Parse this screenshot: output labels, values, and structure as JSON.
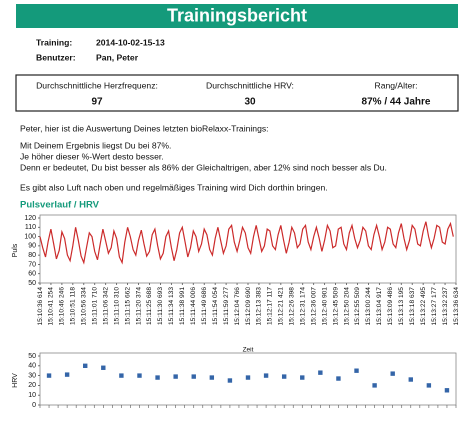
{
  "header": {
    "title": "Trainingsbericht"
  },
  "info": {
    "training_label": "Training:",
    "training": "2014-10-02-15-13",
    "user_label": "Benutzer:",
    "user": "Pan, Peter"
  },
  "stats": [
    {
      "label": "Durchschnittliche Herzfrequenz:",
      "value": "97"
    },
    {
      "label": "Durchschnittliche HRV:",
      "value": "30"
    },
    {
      "label": "Rang/Alter:",
      "value": "87% / 44 Jahre"
    }
  ],
  "paragraphs": [
    "Peter, hier ist die Auswertung Deines letzten bioRelaxx-Trainings:",
    "Mit Deinem Ergebnis liegst Du bei 87%.",
    "Je höher dieser %-Wert desto besser.",
    "Denn er bedeutet, Du bist besser als 86% der Gleichaltrigen, aber 12% sind noch besser als Du.",
    "Es gibt also Luft nach oben und regelmäßiges Training wird Dich dorthin bringen."
  ],
  "section_title": "Pulsverlauf / HRV",
  "chart_data": [
    {
      "type": "line",
      "y_label": "Puls",
      "x_label": "Zeit",
      "color": "#cc2b2b",
      "grid": false,
      "ylim": [
        50,
        120
      ],
      "yticks": [
        50,
        60,
        70,
        80,
        90,
        100,
        110,
        120
      ],
      "xlim": [
        0,
        152
      ],
      "xticks": [
        {
          "value": 0,
          "label": "15:10:36 614"
        },
        {
          "value": 4,
          "label": "15:10:41 254"
        },
        {
          "value": 8,
          "label": "15:10:46 246"
        },
        {
          "value": 12,
          "label": "15:10:51 118"
        },
        {
          "value": 16,
          "label": "15:10:56 334"
        },
        {
          "value": 20,
          "label": "15:11:01 710"
        },
        {
          "value": 24,
          "label": "15:11:06 342"
        },
        {
          "value": 28,
          "label": "15:11:10 310"
        },
        {
          "value": 32,
          "label": "15:11:15 662"
        },
        {
          "value": 36,
          "label": "15:11:20 374"
        },
        {
          "value": 40,
          "label": "15:11:25 688"
        },
        {
          "value": 44,
          "label": "15:11:30 693"
        },
        {
          "value": 48,
          "label": "15:11:34 133"
        },
        {
          "value": 52,
          "label": "15:11:38 991"
        },
        {
          "value": 56,
          "label": "15:11:44 006"
        },
        {
          "value": 60,
          "label": "15:11:49 686"
        },
        {
          "value": 64,
          "label": "15:11:54 054"
        },
        {
          "value": 68,
          "label": "15:11:59 277"
        },
        {
          "value": 72,
          "label": "15:12:04 766"
        },
        {
          "value": 76,
          "label": "15:12:09 690"
        },
        {
          "value": 80,
          "label": "15:12:13 383"
        },
        {
          "value": 84,
          "label": "15:12:17 117"
        },
        {
          "value": 88,
          "label": "15:12:21 421"
        },
        {
          "value": 92,
          "label": "15:12:26 398"
        },
        {
          "value": 96,
          "label": "15:12:31 174"
        },
        {
          "value": 100,
          "label": "15:12:36 007"
        },
        {
          "value": 104,
          "label": "15:12:40 901"
        },
        {
          "value": 108,
          "label": "15:12:45 509"
        },
        {
          "value": 112,
          "label": "15:12:50 204"
        },
        {
          "value": 116,
          "label": "15:12:55 509"
        },
        {
          "value": 120,
          "label": "15:13:00 244"
        },
        {
          "value": 124,
          "label": "15:13:04 917"
        },
        {
          "value": 128,
          "label": "15:13:09 486"
        },
        {
          "value": 132,
          "label": "15:13:13 195"
        },
        {
          "value": 136,
          "label": "15:13:18 637"
        },
        {
          "value": 140,
          "label": "15:13:22 495"
        },
        {
          "value": 144,
          "label": "15:13:27 177"
        },
        {
          "value": 148,
          "label": "15:13:32 237"
        },
        {
          "value": 152,
          "label": "15:13:36 634"
        }
      ],
      "values": [
        100,
        88,
        78,
        95,
        108,
        92,
        76,
        85,
        105,
        98,
        80,
        74,
        90,
        110,
        96,
        79,
        72,
        88,
        104,
        100,
        84,
        75,
        92,
        108,
        95,
        82,
        88,
        106,
        98,
        78,
        72,
        94,
        110,
        100,
        86,
        80,
        96,
        107,
        92,
        79,
        84,
        102,
        108,
        90,
        76,
        82,
        100,
        106,
        88,
        74,
        86,
        104,
        110,
        94,
        78,
        88,
        106,
        100,
        84,
        92,
        108,
        102,
        86,
        80,
        98,
        110,
        96,
        82,
        90,
        108,
        112,
        94,
        84,
        96,
        110,
        104,
        88,
        82,
        100,
        112,
        98,
        84,
        90,
        108,
        106,
        90,
        86,
        102,
        112,
        96,
        82,
        94,
        110,
        104,
        88,
        92,
        108,
        112,
        94,
        86,
        100,
        110,
        98,
        84,
        96,
        112,
        106,
        88,
        90,
        108,
        110,
        92,
        86,
        104,
        112,
        98,
        88,
        96,
        110,
        106,
        90,
        86,
        102,
        112,
        100,
        86,
        94,
        110,
        108,
        92,
        88,
        104,
        114,
        98,
        86,
        96,
        112,
        108,
        92,
        90,
        106,
        116,
        100,
        88,
        98,
        112,
        110,
        94,
        92,
        108,
        114,
        100
      ]
    },
    {
      "type": "scatter",
      "y_label": "HRV",
      "color": "#3465a8",
      "grid": false,
      "ylim": [
        0,
        50
      ],
      "yticks": [
        0,
        10,
        20,
        30,
        40,
        50
      ],
      "values": [
        30,
        31,
        40,
        38,
        30,
        30,
        28,
        29,
        29,
        28,
        25,
        28,
        30,
        29,
        28,
        33,
        27,
        35,
        20,
        32,
        26,
        20,
        15
      ]
    }
  ]
}
